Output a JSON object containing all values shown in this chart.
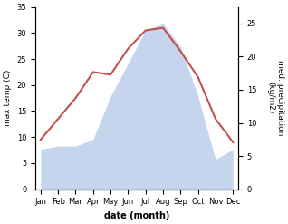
{
  "months": [
    "Jan",
    "Feb",
    "Mar",
    "Apr",
    "May",
    "Jun",
    "Jul",
    "Aug",
    "Sep",
    "Oct",
    "Nov",
    "Dec"
  ],
  "temp": [
    9.5,
    13.5,
    17.5,
    22.5,
    22.0,
    27.0,
    30.5,
    31.0,
    26.5,
    21.5,
    13.5,
    9.0
  ],
  "precip": [
    6.0,
    6.5,
    6.5,
    7.5,
    14.0,
    19.0,
    24.0,
    25.0,
    21.5,
    14.0,
    4.5,
    6.0
  ],
  "temp_color": "#c0504d",
  "precip_color": "#c5d5ee",
  "ylabel_left": "max temp (C)",
  "ylabel_right": "med. precipitation\n(kg/m2)",
  "xlabel": "date (month)",
  "ylim_left": [
    0,
    35
  ],
  "ylim_right": [
    0,
    27.5
  ],
  "yticks_left": [
    0,
    5,
    10,
    15,
    20,
    25,
    30,
    35
  ],
  "yticks_right": [
    0,
    5,
    10,
    15,
    20,
    25
  ],
  "figsize": [
    3.18,
    2.47
  ],
  "dpi": 100,
  "bg_color": "#ffffff",
  "label_fontsize": 6.5,
  "tick_fontsize": 6.0,
  "xlabel_fontsize": 7.0,
  "line_width": 1.5
}
